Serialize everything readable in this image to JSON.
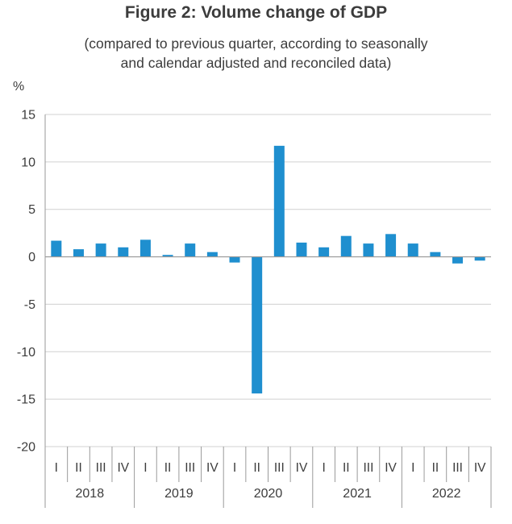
{
  "chart_data": {
    "type": "bar",
    "title": "Figure 2: Volume change of GDP",
    "subtitle_lines": [
      "(compared to previous quarter, according to seasonally",
      "and calendar adjusted and reconciled data)"
    ],
    "ylabel": "%",
    "xlabel": "",
    "ylim": [
      -20,
      15
    ],
    "yticks": [
      15,
      10,
      5,
      0,
      -5,
      -10,
      -15,
      -20
    ],
    "ytick_labels": [
      "15",
      "10",
      "5",
      "0",
      "-5",
      "-10",
      "-15",
      "-20"
    ],
    "quarter_labels": [
      "I",
      "II",
      "III",
      "IV"
    ],
    "years": [
      "2018",
      "2019",
      "2020",
      "2021",
      "2022"
    ],
    "categories": [
      "2018 I",
      "2018 II",
      "2018 III",
      "2018 IV",
      "2019 I",
      "2019 II",
      "2019 III",
      "2019 IV",
      "2020 I",
      "2020 II",
      "2020 III",
      "2020 IV",
      "2021 I",
      "2021 II",
      "2021 III",
      "2021 IV",
      "2022 I",
      "2022 II",
      "2022 III",
      "2022 IV"
    ],
    "values": [
      1.7,
      0.8,
      1.4,
      1.0,
      1.8,
      0.2,
      1.4,
      0.5,
      -0.6,
      -14.4,
      11.7,
      1.5,
      1.0,
      2.2,
      1.4,
      2.4,
      1.4,
      0.5,
      -0.7,
      -0.4
    ],
    "grid": true,
    "bar_color": "#1f8fcf"
  }
}
